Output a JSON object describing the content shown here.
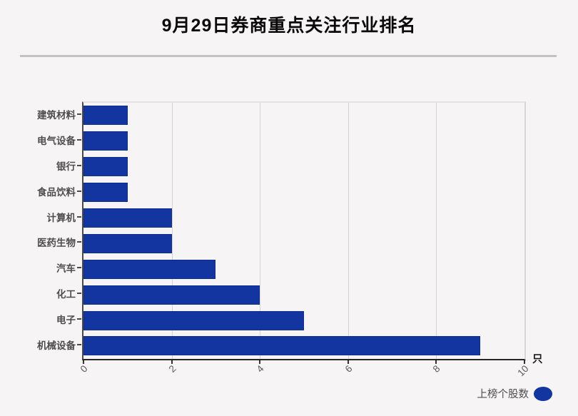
{
  "title": "9月29日券商重点关注行业排名",
  "chart_data": {
    "type": "bar",
    "orientation": "horizontal",
    "title": "9月29日券商重点关注行业排名",
    "categories": [
      "建筑材料",
      "电气设备",
      "银行",
      "食品饮料",
      "计算机",
      "医药生物",
      "汽车",
      "化工",
      "电子",
      "机械设备"
    ],
    "values": [
      1,
      1,
      1,
      1,
      2,
      2,
      3,
      4,
      5,
      9
    ],
    "series_name": "上榜个股数",
    "xlabel": "只",
    "ylabel": "",
    "xlim": [
      0,
      10
    ],
    "xticks": [
      0,
      2,
      4,
      6,
      8,
      10
    ],
    "grid": true,
    "legend_position": "bottom-right",
    "bar_color": "#12359f"
  },
  "axis": {
    "unit_label": "只"
  },
  "legend": {
    "label": "上榜个股数"
  },
  "colors": {
    "background": "#f7f4f5",
    "bar": "#12359f",
    "gridline": "#d4d2d3",
    "axis_dark": "#262626",
    "label_text": "#4d4d4d",
    "divider": "#c3c1c2"
  }
}
